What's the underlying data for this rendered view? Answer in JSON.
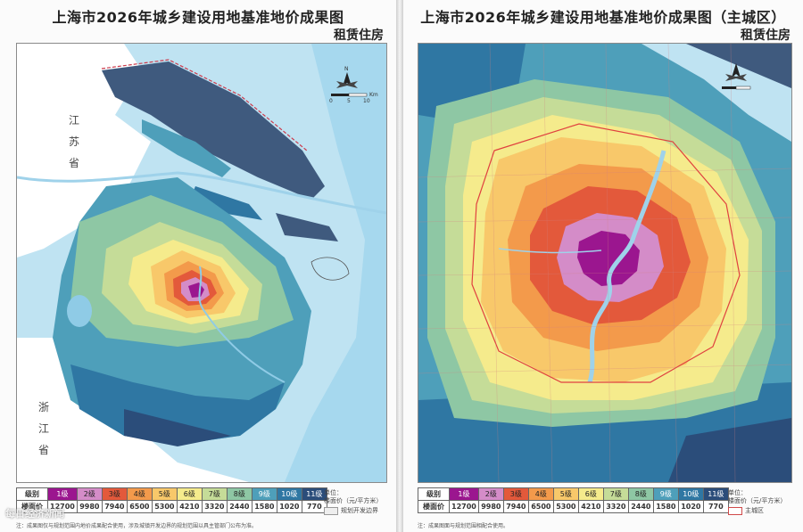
{
  "left_page": {
    "title": "上海市2026年城乡建设用地基准地价成果图",
    "subtitle": "租赁住房",
    "province_labels": [
      "江",
      "苏",
      "省",
      "浙",
      "江",
      "省"
    ],
    "legend": {
      "level_label": "级别",
      "price_label": "楼面价",
      "levels": [
        "1级",
        "2级",
        "3级",
        "4级",
        "5级",
        "6级",
        "7级",
        "8级",
        "9级",
        "10级",
        "11级"
      ],
      "prices": [
        "12700",
        "9980",
        "7940",
        "6500",
        "5300",
        "4210",
        "3320",
        "2440",
        "1580",
        "1020",
        "770"
      ],
      "units": "单位：\n楼面价（元/平方米）",
      "boundary_label": "规划开发边界"
    },
    "note": "注：成果图仅与规划范围内地价成果配合使用，涉及城镇开发边界的规划范围以具主管部门公布为准。"
  },
  "right_page": {
    "title": "上海市2026年城乡建设用地基准地价成果图（主城区）",
    "subtitle": "租赁住房",
    "legend": {
      "level_label": "级别",
      "price_label": "楼面价",
      "levels": [
        "1级",
        "2级",
        "3级",
        "4级",
        "5级",
        "6级",
        "7级",
        "8级",
        "9级",
        "10级",
        "11级"
      ],
      "prices": [
        "12700",
        "9980",
        "7940",
        "6500",
        "5300",
        "4210",
        "3320",
        "2440",
        "1580",
        "1020",
        "770"
      ],
      "units": "单位：\n楼面价（元/平方米）",
      "boundary_label": "主城区"
    },
    "note": "注：成果图面与规划范围相配合使用。"
  },
  "level_colors": [
    "#9b168f",
    "#d48cc8",
    "#e3593b",
    "#f39a4b",
    "#f8c86a",
    "#f5eb8c",
    "#c5dc98",
    "#8ec7a4",
    "#4e9fba",
    "#2f77a3",
    "#2b4d7a"
  ],
  "colors": {
    "water": "#bfe3f2",
    "sea": "#9fd2ea",
    "river": "#8fcbe6",
    "dark_island": "#3f5a7e",
    "boundary_red": "#cc3b4d"
  },
  "scale_bar": {
    "ticks": [
      "0",
      "5",
      "10"
    ],
    "unit": "Km"
  },
  "north_icon": "compass-rose-icon",
  "watermark": "每日经济新闻"
}
